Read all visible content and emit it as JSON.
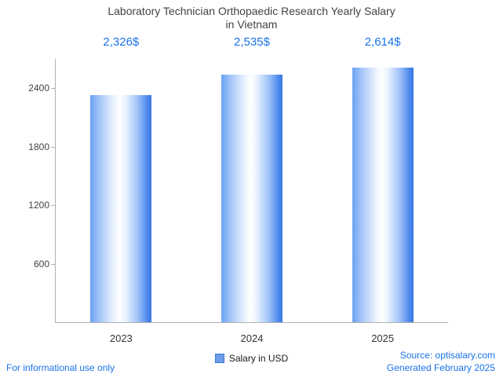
{
  "header": {
    "title_line1": "Laboratory Technician Orthopaedic Research Yearly Salary",
    "title_line2": "in Vietnam"
  },
  "chart_data": {
    "type": "bar",
    "title": "Laboratory Technician Orthopaedic Research Yearly Salary in Vietnam",
    "categories": [
      "2023",
      "2024",
      "2025"
    ],
    "values": [
      2326,
      2535,
      2614
    ],
    "value_labels": [
      "2,326$",
      "2,535$",
      "2,614$"
    ],
    "xlabel": "",
    "ylabel": "",
    "ylim": [
      0,
      2700
    ],
    "yticks": [
      600,
      1200,
      1800,
      2400
    ],
    "grid": false,
    "legend_position": "bottom",
    "legend": "Salary in USD"
  },
  "legend": {
    "label": "Salary in USD",
    "swatch_color": "#6d9eeb"
  },
  "footer": {
    "disclaimer": "For informational use only",
    "source": "Source: optisalary.com",
    "generated": "Generated February 2025"
  },
  "colors": {
    "accent_blue": "#1a73e8",
    "bar_left": "#6aa2f4",
    "bar_mid": "#ffffff",
    "bar_right": "#3a78e0",
    "axis": "#b0b0b0",
    "title_text": "#424242"
  }
}
